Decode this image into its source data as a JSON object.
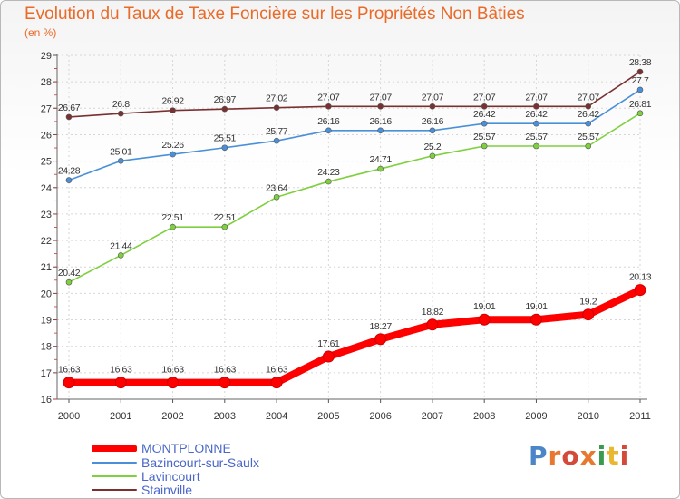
{
  "title": "Evolution du Taux de Taxe Foncière sur les Propriétés Non Bâties",
  "unit": "(en %)",
  "brand": "Proxiti",
  "chart_data": {
    "type": "line",
    "title": "Evolution du Taux de Taxe Foncière sur les Propriétés Non Bâties",
    "ylabel": "(en %)",
    "xlabel": "",
    "ylim": [
      16,
      29
    ],
    "yticks": [
      16,
      17,
      18,
      19,
      20,
      21,
      22,
      23,
      24,
      25,
      26,
      27,
      28,
      29
    ],
    "categories": [
      "2000",
      "2001",
      "2002",
      "2003",
      "2004",
      "2005",
      "2006",
      "2007",
      "2008",
      "2009",
      "2010",
      "2011"
    ],
    "legend_position": "bottom-left",
    "series": [
      {
        "name": "MONTPLONNE",
        "color": "#ff0000",
        "values": [
          16.63,
          16.63,
          16.63,
          16.63,
          16.63,
          17.61,
          18.27,
          18.82,
          19.01,
          19.01,
          19.2,
          20.13
        ],
        "labels": [
          "16.63",
          "16.63",
          "16.63",
          "16.63",
          "16.63",
          "17.61",
          "18.27",
          "18.82",
          "19.01",
          "19.01",
          "19.2",
          "20.13"
        ]
      },
      {
        "name": "Bazincourt-sur-Saulx",
        "color": "#4a90d9",
        "values": [
          24.28,
          25.01,
          25.26,
          25.51,
          25.77,
          26.16,
          26.16,
          26.16,
          26.42,
          26.42,
          26.42,
          27.7
        ],
        "labels": [
          "24.28",
          "25.01",
          "25.26",
          "25.51",
          "25.77",
          "26.16",
          "26.16",
          "26.16",
          "26.42",
          "26.42",
          "26.42",
          "27.7"
        ]
      },
      {
        "name": "Lavincourt",
        "color": "#7ed03e",
        "values": [
          20.42,
          21.44,
          22.51,
          22.51,
          23.64,
          24.23,
          24.71,
          25.2,
          25.57,
          25.57,
          25.57,
          26.81
        ],
        "labels": [
          "20.42",
          "21.44",
          "22.51",
          "22.51",
          "23.64",
          "24.23",
          "24.71",
          "25.2",
          "25.57",
          "25.57",
          "25.57",
          "26.81"
        ]
      },
      {
        "name": "Stainville",
        "color": "#7a3030",
        "values": [
          26.67,
          26.8,
          26.92,
          26.97,
          27.02,
          27.07,
          27.07,
          27.07,
          27.07,
          27.07,
          27.07,
          28.38
        ],
        "labels": [
          "26.67",
          "26.8",
          "26.92",
          "26.97",
          "27.02",
          "27.07",
          "27.07",
          "27.07",
          "27.07",
          "27.07",
          "27.07",
          "28.38"
        ]
      }
    ]
  }
}
